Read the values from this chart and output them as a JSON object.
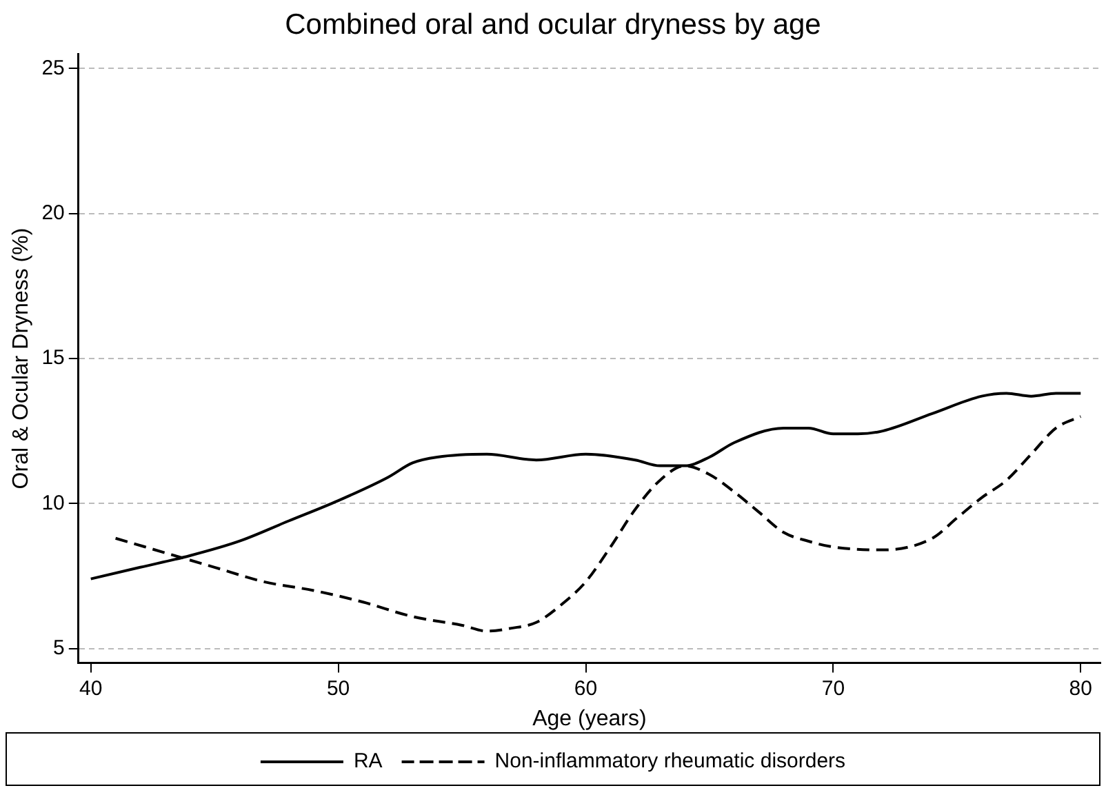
{
  "chart_data": {
    "type": "line",
    "title": "Combined oral and ocular dryness by age",
    "xlabel": "Age (years)",
    "ylabel": "Oral & Ocular Dryness (%)",
    "xlim": [
      39.5,
      80.8
    ],
    "xticks": [
      40,
      50,
      60,
      70,
      80
    ],
    "ylim": [
      4.5,
      25.5
    ],
    "yticks": [
      5,
      10,
      15,
      20,
      25
    ],
    "grid": "y",
    "legend": "bottom",
    "marker": "none",
    "series": [
      {
        "name": "RA",
        "color": "#000000",
        "line_style": "solid",
        "x": [
          40,
          42,
          44,
          46,
          48,
          50,
          52,
          53,
          54,
          56,
          58,
          60,
          62,
          63,
          64,
          65,
          66,
          68,
          69,
          70,
          71,
          72,
          74,
          76,
          77,
          78,
          79,
          80
        ],
        "values": [
          7.4,
          7.8,
          8.2,
          8.7,
          9.4,
          10.1,
          10.9,
          11.4,
          11.6,
          11.7,
          11.5,
          11.7,
          11.5,
          11.3,
          11.3,
          11.6,
          12.1,
          12.6,
          12.6,
          12.4,
          12.4,
          12.5,
          13.1,
          13.7,
          13.8,
          13.7,
          13.8,
          13.8
        ]
      },
      {
        "name": "Non-inflammatory rheumatic disorders",
        "color": "#000000",
        "line_style": "dashed",
        "x": [
          41,
          43,
          45,
          47,
          49,
          51,
          53,
          55,
          56,
          57,
          58,
          59,
          60,
          61,
          62,
          63,
          64,
          65,
          66,
          67,
          68,
          69,
          70,
          72,
          74,
          75,
          76,
          77,
          78,
          79,
          80
        ],
        "values": [
          8.8,
          8.3,
          7.8,
          7.3,
          7.0,
          6.6,
          6.1,
          5.8,
          5.6,
          5.7,
          5.9,
          6.5,
          7.3,
          8.5,
          9.8,
          10.8,
          11.3,
          11.0,
          10.4,
          9.7,
          9.0,
          8.7,
          8.5,
          8.4,
          8.8,
          9.5,
          10.2,
          10.8,
          11.7,
          12.6,
          13.0
        ]
      }
    ]
  }
}
